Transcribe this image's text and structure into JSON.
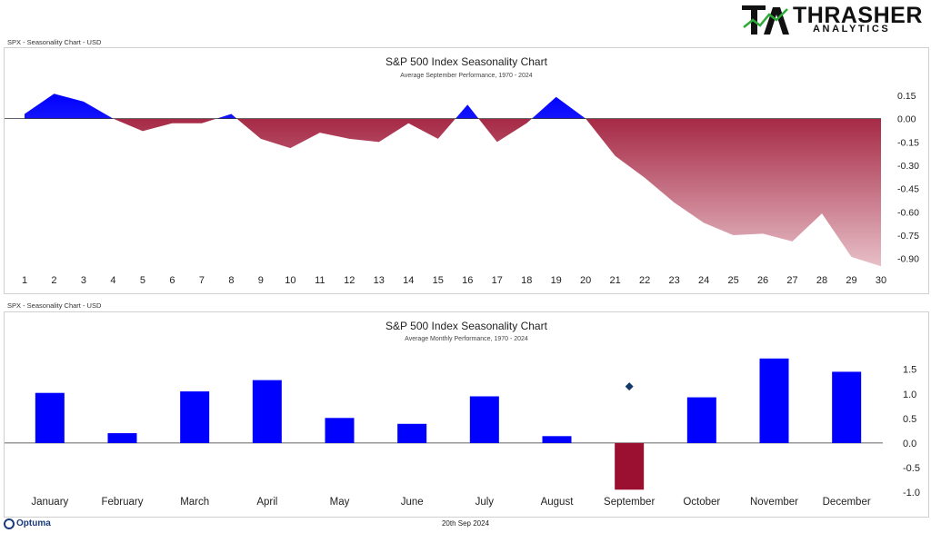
{
  "brand": {
    "name": "THRASHER",
    "sub": "ANALYTICS"
  },
  "footer": {
    "vendor": "Optuma",
    "date": "20th Sep 2024"
  },
  "chart_data": [
    {
      "type": "area",
      "panel_label": "SPX - Seasonality Chart - USD",
      "title": "S&P 500 Index Seasonality Chart",
      "subtitle": "Average September Performance, 1970 - 2024",
      "x": [
        1,
        2,
        3,
        4,
        5,
        6,
        7,
        8,
        9,
        10,
        11,
        12,
        13,
        14,
        15,
        16,
        17,
        18,
        19,
        20,
        21,
        22,
        23,
        24,
        25,
        26,
        27,
        28,
        29,
        30
      ],
      "values": [
        0.03,
        0.16,
        0.11,
        0.0,
        -0.08,
        -0.03,
        -0.03,
        0.03,
        -0.13,
        -0.19,
        -0.09,
        -0.13,
        -0.15,
        -0.03,
        -0.13,
        0.09,
        -0.15,
        -0.03,
        0.14,
        0.0,
        -0.24,
        -0.38,
        -0.54,
        -0.67,
        -0.75,
        -0.74,
        -0.79,
        -0.61,
        -0.89,
        -0.95
      ],
      "yticks": [
        0.15,
        0.0,
        -0.15,
        -0.3,
        -0.45,
        -0.6,
        -0.75,
        -0.9
      ],
      "ytick_labels": [
        "0.15",
        "0.00",
        "-0.15",
        "-0.30",
        "-0.45",
        "-0.60",
        "-0.75",
        "-0.90"
      ],
      "ylim": [
        -0.96,
        0.22
      ],
      "colors": {
        "positive": "#0000ff",
        "negative": "#9b1030",
        "negative_fade": "#e7bfc7"
      }
    },
    {
      "type": "bar",
      "panel_label": "SPX - Seasonality Chart - USD",
      "title": "S&P 500 Index Seasonality Chart",
      "subtitle": "Average Monthly Performance, 1970 - 2024",
      "categories": [
        "January",
        "February",
        "March",
        "April",
        "May",
        "June",
        "July",
        "August",
        "September",
        "October",
        "November",
        "December"
      ],
      "values": [
        1.02,
        0.2,
        1.05,
        1.28,
        0.51,
        0.39,
        0.95,
        0.14,
        -0.95,
        0.93,
        1.72,
        1.45
      ],
      "current_month_marker": {
        "category": "September",
        "value": 1.15
      },
      "yticks": [
        1.5,
        1.0,
        0.5,
        0.0,
        -0.5,
        -1.0
      ],
      "ytick_labels": [
        "1.5",
        "1.0",
        "0.5",
        "0.0",
        "-0.5",
        "-1.0"
      ],
      "ylim": [
        -1.0,
        1.92
      ],
      "colors": {
        "positive": "#0000ff",
        "negative": "#9b1030",
        "marker": "#123a6b"
      }
    }
  ]
}
